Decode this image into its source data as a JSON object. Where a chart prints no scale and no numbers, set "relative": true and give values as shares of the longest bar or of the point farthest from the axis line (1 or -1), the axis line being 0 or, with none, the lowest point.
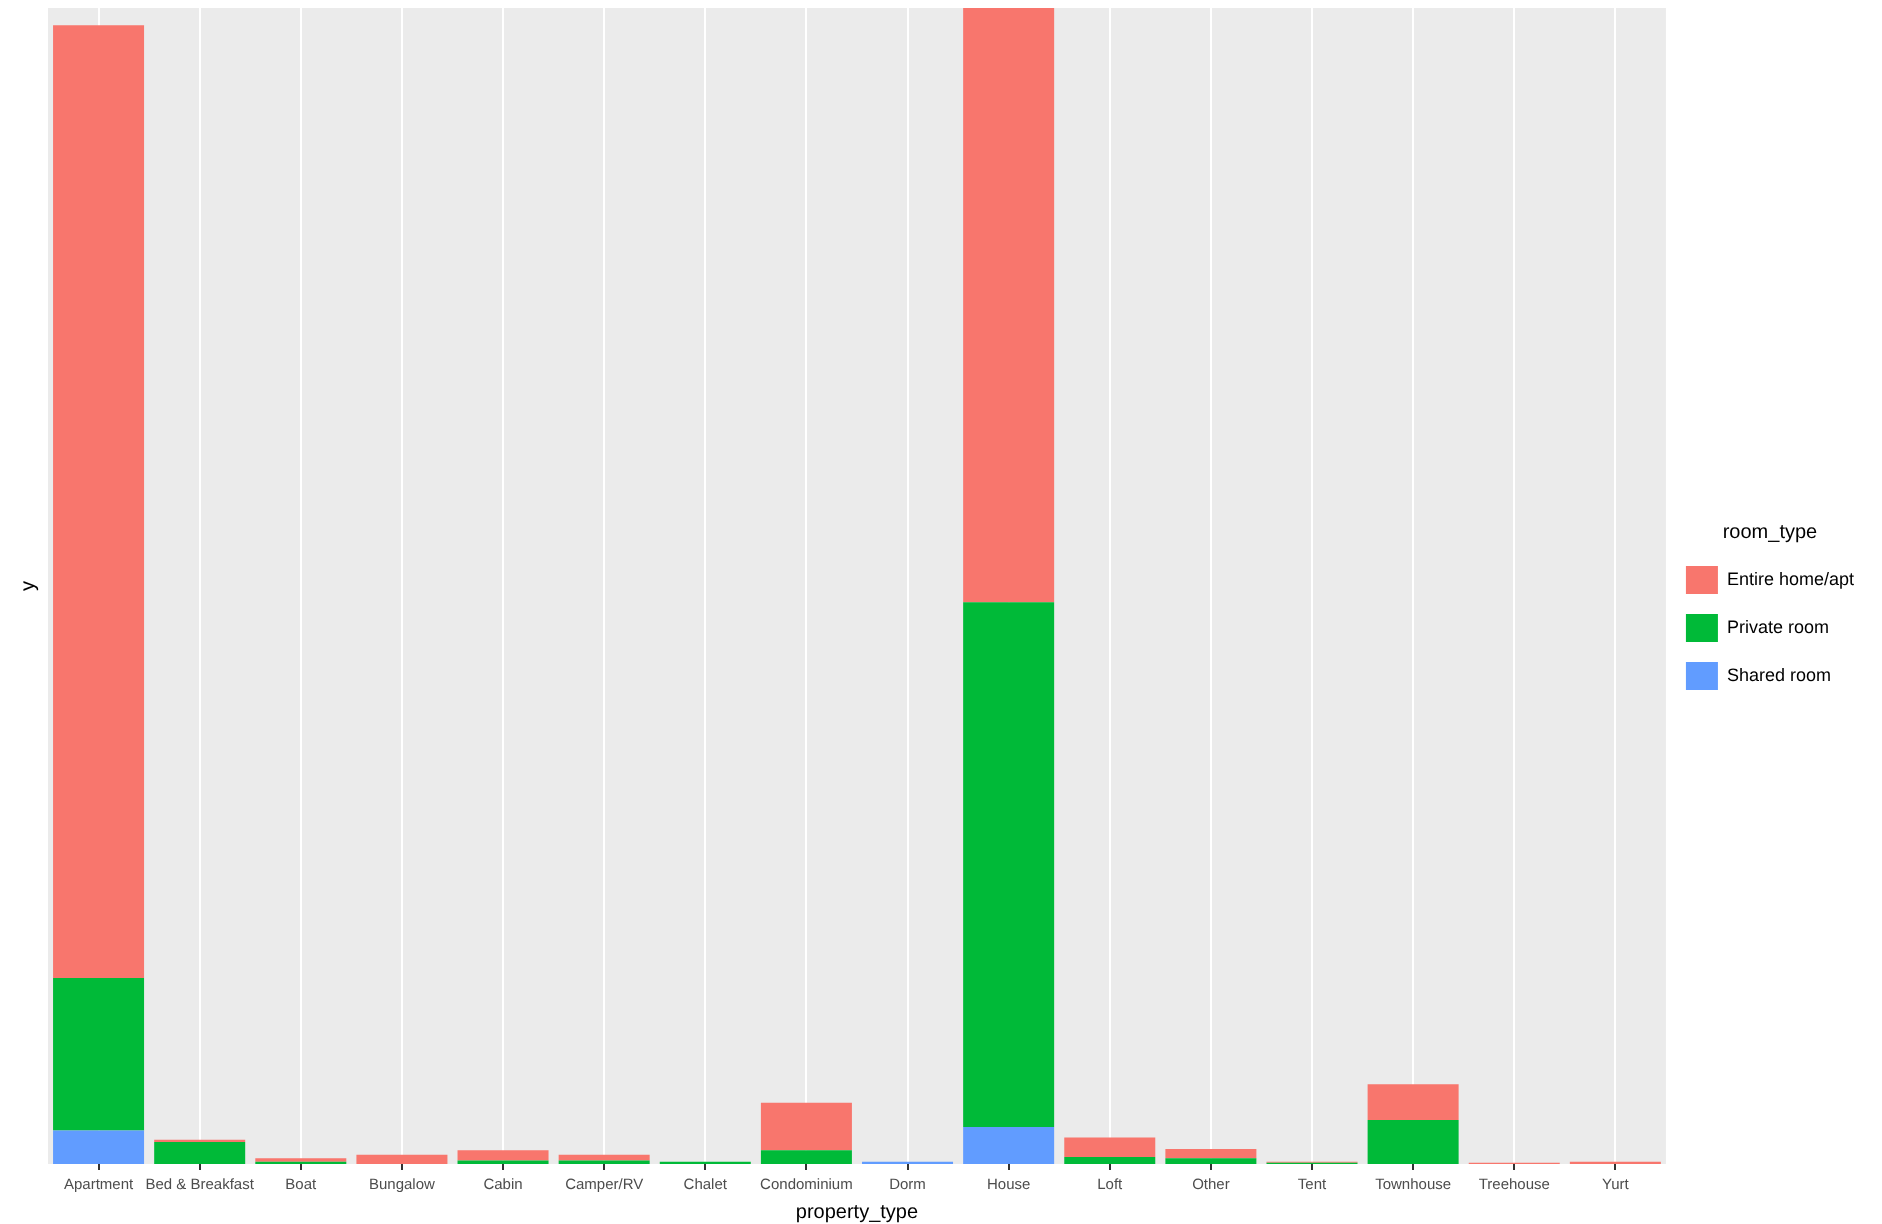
{
  "chart_data": {
    "type": "bar",
    "stacked": true,
    "relative": true,
    "xlabel": "property_type",
    "ylabel": "y",
    "legend_title": "room_type",
    "legend": "right",
    "grid": "x",
    "categories": [
      "Apartment",
      "Bed & Breakfast",
      "Boat",
      "Bungalow",
      "Cabin",
      "Camper/RV",
      "Chalet",
      "Condominium",
      "Dorm",
      "House",
      "Loft",
      "Other",
      "Tent",
      "Townhouse",
      "Treehouse",
      "Yurt"
    ],
    "series": [
      {
        "name": "Shared room",
        "color": "#619cff",
        "values": [
          0.029,
          0,
          0,
          0,
          0,
          0,
          0,
          0,
          0.002,
          0.032,
          0,
          0,
          0,
          0,
          0,
          0
        ]
      },
      {
        "name": "Private room",
        "color": "#00ba38",
        "values": [
          0.132,
          0.019,
          0.002,
          0,
          0.003,
          0.003,
          0.002,
          0.012,
          0,
          0.454,
          0.006,
          0.005,
          0.001,
          0.038,
          0,
          0
        ]
      },
      {
        "name": "Entire home/apt",
        "color": "#f8766d",
        "values": [
          0.824,
          0.002,
          0.003,
          0.008,
          0.009,
          0.005,
          0,
          0.041,
          0,
          0.514,
          0.017,
          0.008,
          0.001,
          0.031,
          0.001,
          0.002
        ]
      }
    ]
  }
}
